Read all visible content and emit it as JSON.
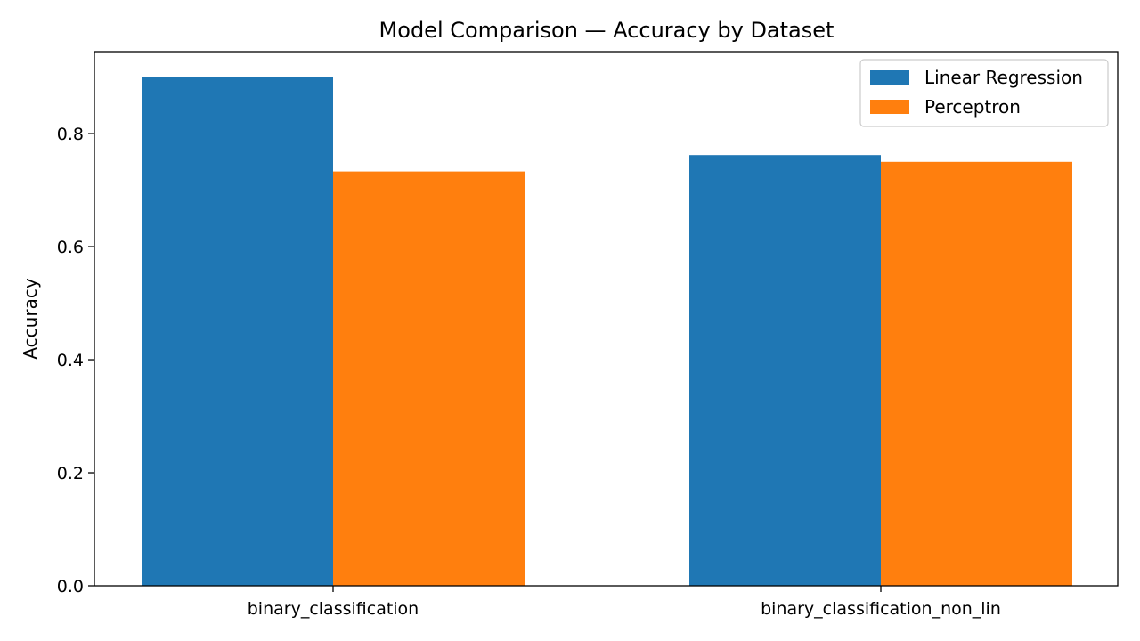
{
  "chart_data": {
    "type": "bar",
    "title": "Model Comparison — Accuracy by Dataset",
    "xlabel": "",
    "ylabel": "Accuracy",
    "categories": [
      "binary_classification",
      "binary_classification_non_lin"
    ],
    "series": [
      {
        "name": "Linear Regression",
        "color": "#1f77b4",
        "values": [
          0.9,
          0.762
        ]
      },
      {
        "name": "Perceptron",
        "color": "#ff7f0e",
        "values": [
          0.733,
          0.75
        ]
      }
    ],
    "ylim": [
      0,
      0.945
    ],
    "yticks": [
      0.0,
      0.2,
      0.4,
      0.6,
      0.8
    ],
    "ytick_labels": [
      "0.0",
      "0.2",
      "0.4",
      "0.6",
      "0.8"
    ],
    "grid": false,
    "legend_position": "top-right"
  }
}
